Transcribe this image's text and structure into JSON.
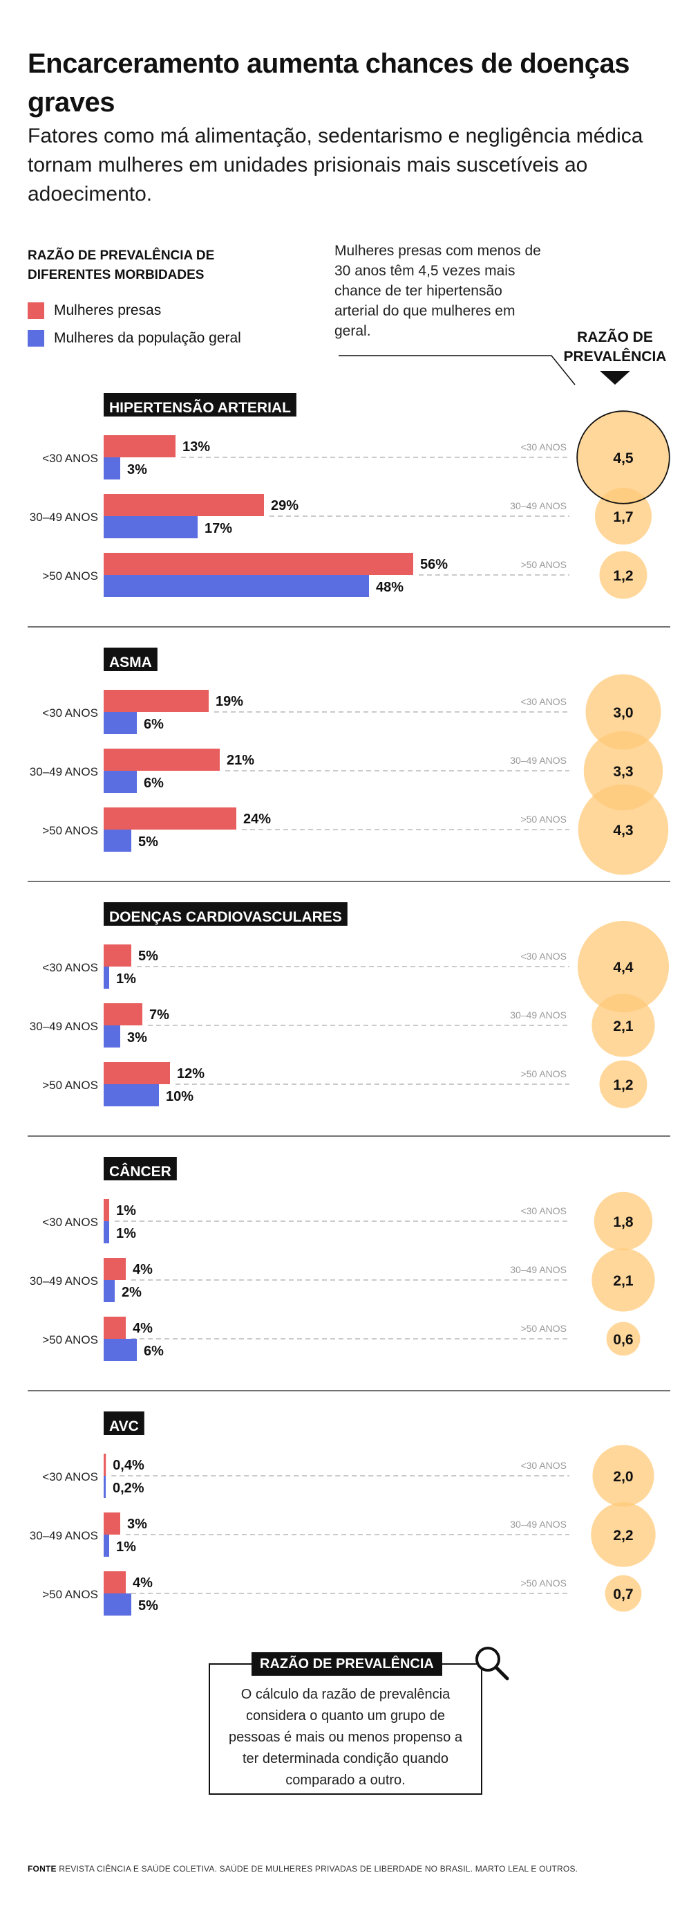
{
  "title": "Encarceramento aumenta chances de doenças graves",
  "subtitle": "Fatores como má alimentação, sedentarismo e negligência médica tornam mulheres em unidades prisionais mais suscetíveis ao adoecimento.",
  "legend": {
    "title": "RAZÃO DE PREVALÊNCIA DE DIFERENTES MORBIDADES",
    "series": [
      {
        "name": "Mulheres presas",
        "color": "#e85d5d"
      },
      {
        "name": "Mulheres da população geral",
        "color": "#5b6ee1"
      }
    ]
  },
  "annotation": "Mulheres presas com menos de 30 anos têm 4,5 vezes mais chance de ter hipertensão arterial do que mulheres em geral.",
  "ratio_header": "RAZÃO DE PREVALÊNCIA",
  "colors": {
    "prisoners": "#e85d5d",
    "general": "#5b6ee1",
    "bubble": "#ffc978",
    "bubble_opacity": 0.75,
    "divider": "#444444",
    "dash": "#aaaaaa"
  },
  "chart_data": {
    "type": "bar",
    "age_groups": [
      "<30 ANOS",
      "30–49 ANOS",
      ">50 ANOS"
    ],
    "series_names": [
      "Mulheres presas",
      "Mulheres da população geral",
      "Razão de prevalência"
    ],
    "x_range": [
      0,
      60
    ],
    "diseases": [
      {
        "name": "HIPERTENSÃO ARTERIAL",
        "prisoners": [
          13,
          29,
          56
        ],
        "general": [
          3,
          17,
          48
        ],
        "ratio": [
          4.5,
          1.7,
          1.2
        ],
        "prisoners_labels": [
          "13%",
          "29%",
          "56%"
        ],
        "general_labels": [
          "3%",
          "17%",
          "48%"
        ],
        "ratio_labels": [
          "4,5",
          "1,7",
          "1,2"
        ]
      },
      {
        "name": "ASMA",
        "prisoners": [
          19,
          21,
          24
        ],
        "general": [
          6,
          6,
          5
        ],
        "ratio": [
          3.0,
          3.3,
          4.3
        ],
        "prisoners_labels": [
          "19%",
          "21%",
          "24%"
        ],
        "general_labels": [
          "6%",
          "6%",
          "5%"
        ],
        "ratio_labels": [
          "3,0",
          "3,3",
          "4,3"
        ]
      },
      {
        "name": "DOENÇAS CARDIOVASCULARES",
        "prisoners": [
          5,
          7,
          12
        ],
        "general": [
          1,
          3,
          10
        ],
        "ratio": [
          4.4,
          2.1,
          1.2
        ],
        "prisoners_labels": [
          "5%",
          "7%",
          "12%"
        ],
        "general_labels": [
          "1%",
          "3%",
          "10%"
        ],
        "ratio_labels": [
          "4,4",
          "2,1",
          "1,2"
        ]
      },
      {
        "name": "CÂNCER",
        "prisoners": [
          1,
          4,
          4
        ],
        "general": [
          1,
          2,
          6
        ],
        "ratio": [
          1.8,
          2.1,
          0.6
        ],
        "prisoners_labels": [
          "1%",
          "4%",
          "4%"
        ],
        "general_labels": [
          "1%",
          "2%",
          "6%"
        ],
        "ratio_labels": [
          "1,8",
          "2,1",
          "0,6"
        ]
      },
      {
        "name": "AVC",
        "prisoners": [
          0.4,
          3,
          4
        ],
        "general": [
          0.2,
          1,
          5
        ],
        "ratio": [
          2.0,
          2.2,
          0.7
        ],
        "prisoners_labels": [
          "0,4%",
          "3%",
          "4%"
        ],
        "general_labels": [
          "0,2%",
          "1%",
          "5%"
        ],
        "ratio_labels": [
          "2,0",
          "2,2",
          "0,7"
        ]
      }
    ]
  },
  "definition": {
    "title": "RAZÃO DE PREVALÊNCIA",
    "text": "O cálculo da razão de prevalência considera o quanto um grupo de pessoas é mais ou menos propenso a ter determinada condição quando comparado a outro."
  },
  "source": {
    "label": "FONTE",
    "text": "REVISTA CIÊNCIA E SAÚDE COLETIVA. SAÚDE DE MULHERES PRIVADAS DE LIBERDADE NO BRASIL. MARTO LEAL E OUTROS."
  }
}
